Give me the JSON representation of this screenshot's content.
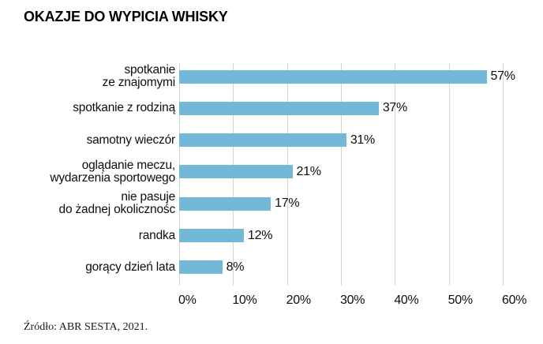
{
  "colors": {
    "bar": "#74b8d8",
    "gridline": "#d4d4d4",
    "text": "#0d0d0d"
  },
  "chart_data": {
    "type": "bar",
    "orientation": "horizontal",
    "title": "OKAZJE DO WYPICIA WHISKY",
    "categories": [
      "spotkanie\nze znajomymi",
      "spotkanie z rodziną",
      "samotny wieczór",
      "oglądanie meczu,\nwydarzenia sportowego",
      "nie pasuje\ndo żadnej okolicznośc",
      "randka",
      "gorący dzień lata"
    ],
    "values": [
      57,
      37,
      31,
      21,
      17,
      12,
      8
    ],
    "value_labels": [
      "57%",
      "37%",
      "31%",
      "21%",
      "17%",
      "12%",
      "8%"
    ],
    "x_ticks": [
      "0%",
      "10%",
      "20%",
      "30%",
      "40%",
      "50%",
      "60%"
    ],
    "x_tick_values": [
      0,
      10,
      20,
      30,
      40,
      50,
      60
    ],
    "xlim": [
      0,
      60
    ],
    "grid": true,
    "legend": false,
    "bar_color": "#74b8d8",
    "source_note": "Źródło: ABR SESTA, 2021."
  }
}
